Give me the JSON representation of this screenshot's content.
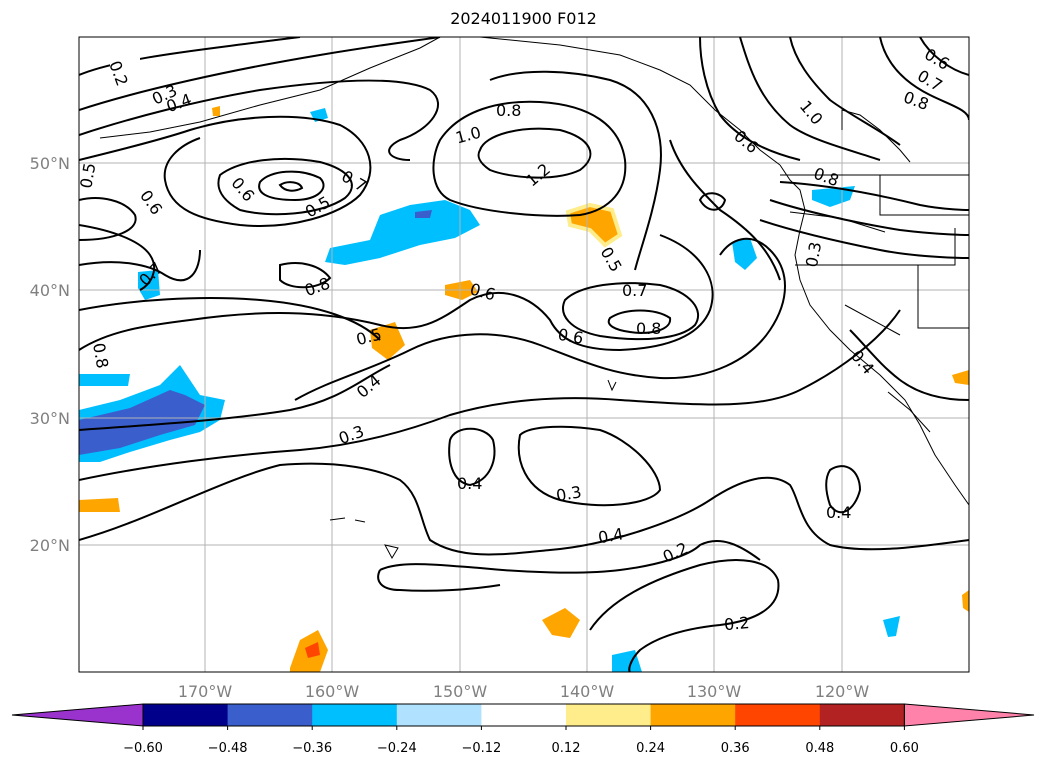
{
  "title": "2024011900 F012",
  "lat_labels": [
    "50°N",
    "40°N",
    "30°N",
    "20°N"
  ],
  "lon_labels": [
    "170°W",
    "160°W",
    "150°W",
    "140°W",
    "130°W",
    "120°W"
  ],
  "contour_labels": [
    "0.2",
    "0.3",
    "0.4",
    "0.5",
    "0.6",
    "0.7",
    "0.8",
    "1.0",
    "1.2",
    "0.8",
    "0.7",
    "0.6",
    "0.8",
    "0.5",
    "0.6",
    "0.5",
    "0.7",
    "0.8",
    "0.6",
    "0.5",
    "0.4",
    "0.3",
    "0.4",
    "0.3",
    "0.4",
    "0.2",
    "0.2",
    "0.4",
    "0.3",
    "0.4",
    "0.6",
    "0.7",
    "0.8",
    "1.0",
    "0.8",
    "0.6"
  ],
  "colorbar": {
    "ticks": [
      "−0.60",
      "−0.48",
      "−0.36",
      "−0.24",
      "−0.12",
      "0.12",
      "0.24",
      "0.36",
      "0.48",
      "0.60"
    ],
    "colors": [
      "#9a32cd",
      "#00008b",
      "#3a5fcd",
      "#00bfff",
      "#b0e2ff",
      "#ffffff",
      "#ffec8b",
      "#ffa500",
      "#ff4500",
      "#b22222",
      "#ff82ab"
    ]
  },
  "colors": {
    "contour": "#000000",
    "grid": "#b3b3b3",
    "coast": "#000000"
  }
}
